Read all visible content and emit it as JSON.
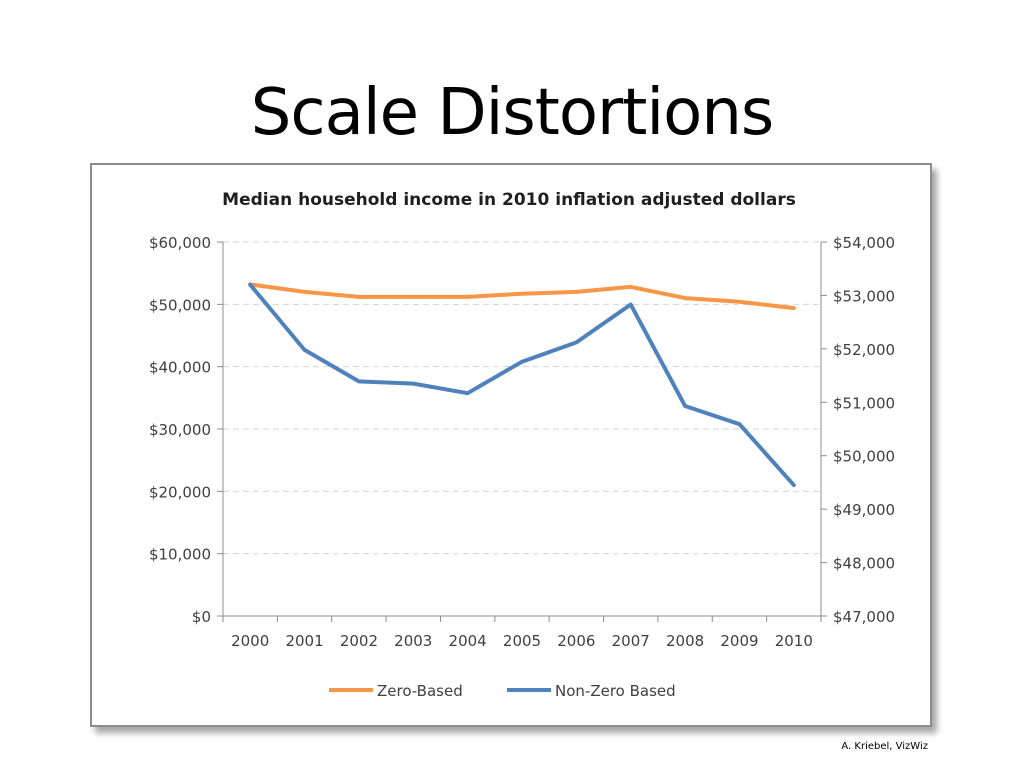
{
  "slide": {
    "title": "Scale Distortions",
    "credit": "A. Kriebel, VizWiz"
  },
  "chart_data": {
    "type": "line",
    "title": "Median household income in 2010 inflation adjusted dollars",
    "x": [
      "2000",
      "2001",
      "2002",
      "2003",
      "2004",
      "2005",
      "2006",
      "2007",
      "2008",
      "2009",
      "2010"
    ],
    "left_axis": {
      "ticks": [
        "$0",
        "$10,000",
        "$20,000",
        "$30,000",
        "$40,000",
        "$50,000",
        "$60,000"
      ],
      "ylim": [
        0,
        60000
      ]
    },
    "right_axis": {
      "ticks": [
        "$47,000",
        "$48,000",
        "$49,000",
        "$50,000",
        "$51,000",
        "$52,000",
        "$53,000",
        "$54,000"
      ],
      "ylim": [
        47000,
        54000
      ]
    },
    "series": [
      {
        "name": "Zero-Based",
        "axis": "left",
        "color": "#F79646",
        "values": [
          53200,
          52000,
          51200,
          51200,
          51200,
          51700,
          52000,
          52800,
          51000,
          50400,
          49400
        ]
      },
      {
        "name": "Non-Zero Based",
        "axis": "right",
        "color": "#4F81BD",
        "values": [
          53200,
          51980,
          51390,
          51350,
          51170,
          51760,
          52120,
          52830,
          50930,
          50590,
          49450
        ]
      }
    ],
    "grid": true,
    "legend": "bottom"
  }
}
